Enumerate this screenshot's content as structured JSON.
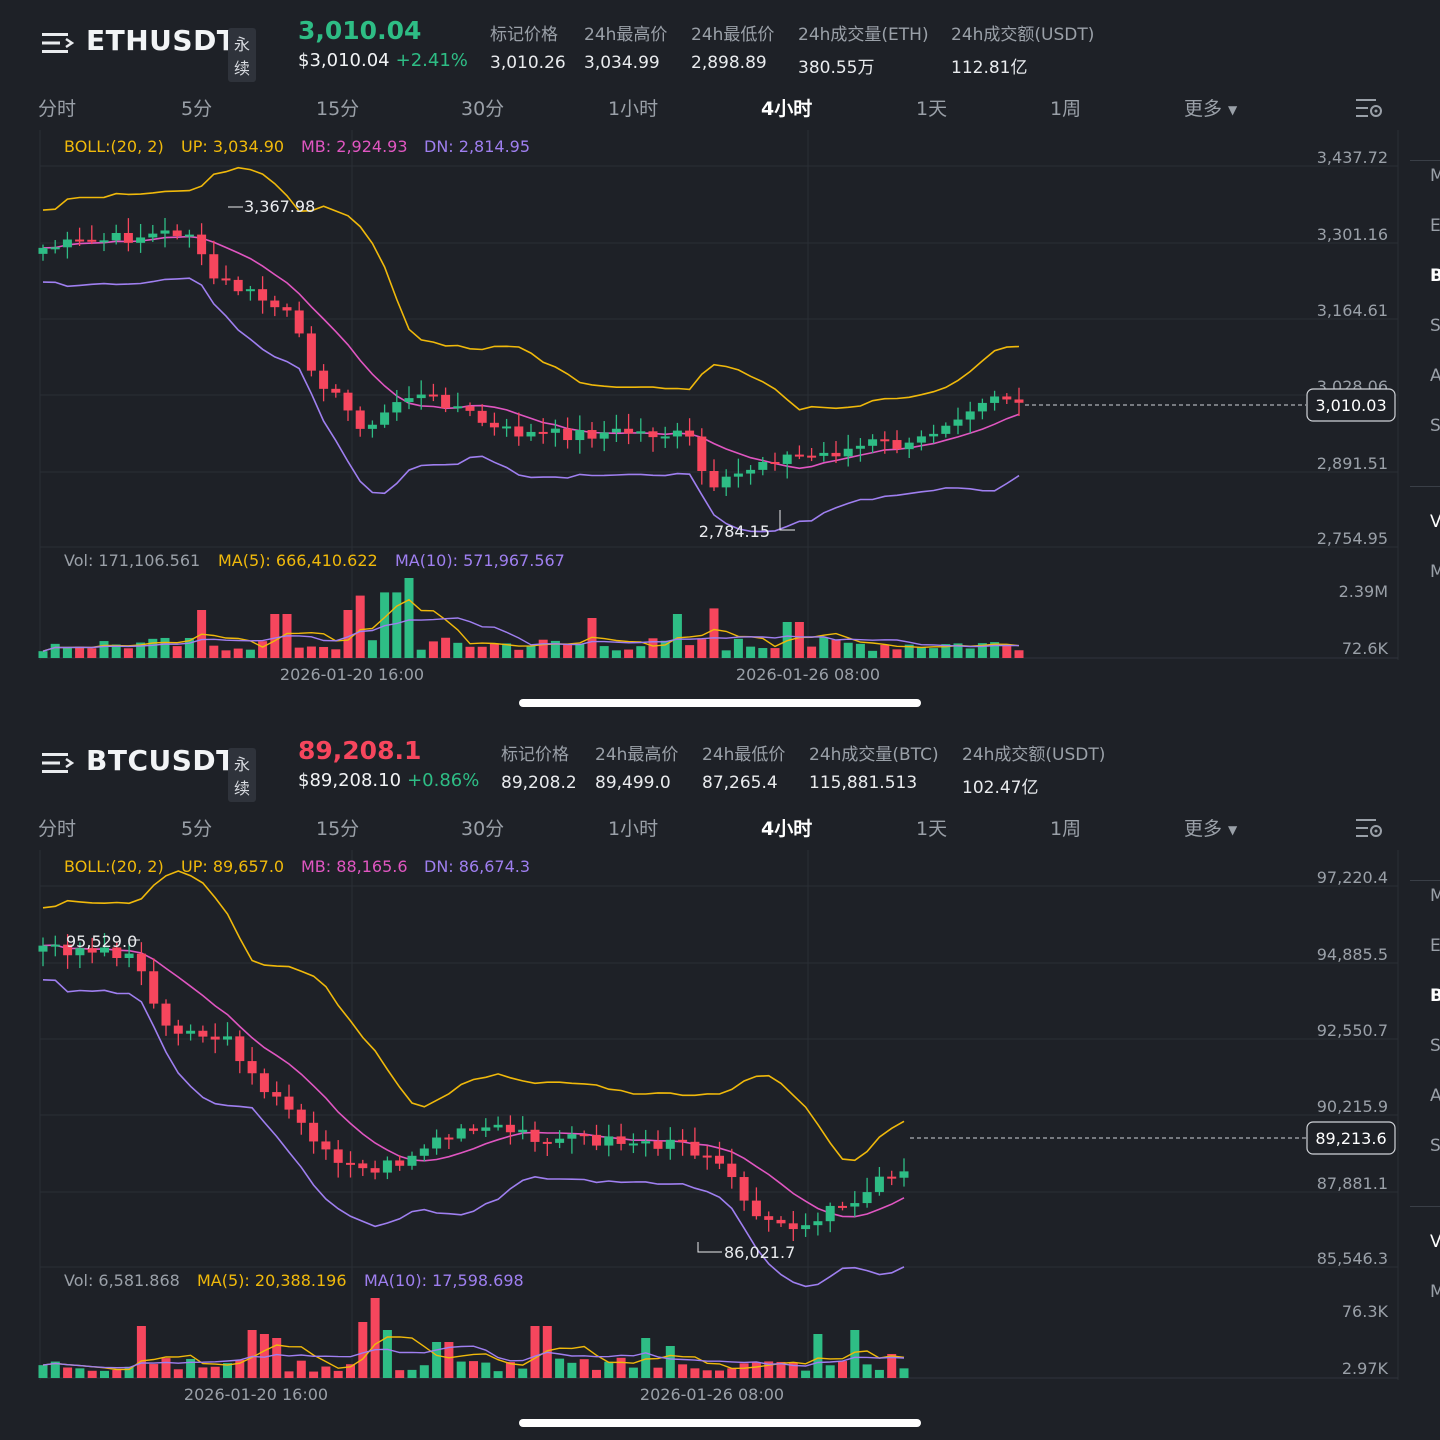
{
  "panels": [
    {
      "pair": "ETHUSDT",
      "contract_type": "永续",
      "price": "3,010.04",
      "price_usd": "$3,010.04",
      "change_pct": "+2.41%",
      "stats": [
        {
          "label": "标记价格",
          "value": "3,010.26"
        },
        {
          "label": "24h最高价",
          "value": "3,034.99"
        },
        {
          "label": "24h最低价",
          "value": "2,898.89"
        },
        {
          "label": "24h成交量(ETH)",
          "value": "380.55万"
        },
        {
          "label": "24h成交额(USDT)",
          "value": "112.81亿"
        }
      ],
      "tabs": [
        "分时",
        "5分",
        "15分",
        "30分",
        "1小时",
        "4小时",
        "1天",
        "1周",
        "更多"
      ],
      "active_tab": "4小时",
      "boll": {
        "label": "BOLL:(20, 2)",
        "up": "UP: 3,034.90",
        "mb": "MB: 2,924.93",
        "dn": "DN: 2,814.95"
      },
      "price_axis": [
        "3,437.72",
        "3,301.16",
        "3,164.61",
        "3,028.06",
        "2,891.51",
        "2,754.95"
      ],
      "current_price_tag": "3,010.03",
      "high_annot": "3,367.98",
      "low_annot": "2,784.15",
      "vol": {
        "vol": "Vol: 171,106.561",
        "ma5": "MA(5): 666,410.622",
        "ma10": "MA(10): 571,967.567"
      },
      "vol_axis": [
        "2.39M",
        "72.6K"
      ],
      "time_labels": [
        "2026-01-20 16:00",
        "2026-01-26 08:00"
      ]
    },
    {
      "pair": "BTCUSDT",
      "contract_type": "永续",
      "price": "89,208.1",
      "price_usd": "$89,208.10",
      "change_pct": "+0.86%",
      "stats": [
        {
          "label": "标记价格",
          "value": "89,208.2"
        },
        {
          "label": "24h最高价",
          "value": "89,499.0"
        },
        {
          "label": "24h最低价",
          "value": "87,265.4"
        },
        {
          "label": "24h成交量(BTC)",
          "value": "115,881.513"
        },
        {
          "label": "24h成交额(USDT)",
          "value": "102.47亿"
        }
      ],
      "tabs": [
        "分时",
        "5分",
        "15分",
        "30分",
        "1小时",
        "4小时",
        "1天",
        "1周",
        "更多"
      ],
      "active_tab": "4小时",
      "boll": {
        "label": "BOLL:(20, 2)",
        "up": "UP: 89,657.0",
        "mb": "MB: 88,165.6",
        "dn": "DN: 86,674.3"
      },
      "price_axis": [
        "97,220.4",
        "94,885.5",
        "92,550.7",
        "90,215.9",
        "87,881.1",
        "85,546.3"
      ],
      "current_price_tag": "89,213.6",
      "high_annot": "95,529.0",
      "low_annot": "86,021.7",
      "vol": {
        "vol": "Vol: 6,581.868",
        "ma5": "MA(5): 20,388.196",
        "ma10": "MA(10): 17,598.698"
      },
      "vol_axis": [
        "76.3K",
        "2.97K"
      ],
      "time_labels": [
        "2026-01-20 16:00",
        "2026-01-26 08:00"
      ]
    }
  ],
  "side_letters": [
    "M",
    "E",
    "B",
    "S",
    "A",
    "S",
    "V",
    "M"
  ],
  "colors": {
    "up": "#2ebd85",
    "down": "#f6465d",
    "boll_up": "#f0b90b",
    "boll_mb": "#e056c1",
    "boll_dn": "#9f7ff0",
    "bg": "#1e2127"
  }
}
